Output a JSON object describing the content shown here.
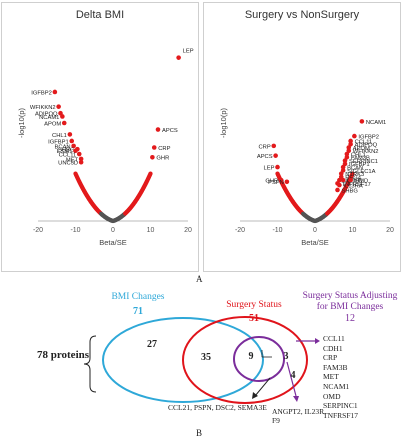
{
  "panel_label_top": "A",
  "panel_label_bottom": "B",
  "chart_data": [
    {
      "type": "scatter",
      "title": "Delta BMI",
      "xlabel": "Beta/SE",
      "ylabel": "-log10(p)",
      "xlim": [
        -20,
        20
      ],
      "ylim": [
        0,
        60
      ],
      "xticks": [
        -20,
        -10,
        0,
        10,
        20
      ],
      "colors": {
        "significant": "#e31a1c",
        "nonsignificant": "#555555"
      },
      "labeled_points": [
        {
          "label": "LEP",
          "x": 17.5,
          "y": 50
        },
        {
          "label": "IGFBP2",
          "x": -15.5,
          "y": 39.5
        },
        {
          "label": "WFIKKN2",
          "x": -14.5,
          "y": 35
        },
        {
          "label": "ADIPOQ",
          "x": -14,
          "y": 33
        },
        {
          "label": "NCAM1",
          "x": -13.5,
          "y": 32
        },
        {
          "label": "APOM",
          "x": -13,
          "y": 30
        },
        {
          "label": "APCS",
          "x": 12,
          "y": 28
        },
        {
          "label": "CHL1",
          "x": -11.5,
          "y": 26.5
        },
        {
          "label": "IGFBP1",
          "x": -11,
          "y": 24.5
        },
        {
          "label": "BCAN",
          "x": -10.5,
          "y": 23
        },
        {
          "label": "SHBG",
          "x": -9.5,
          "y": 22
        },
        {
          "label": "CRP",
          "x": 11,
          "y": 22.5
        },
        {
          "label": "ESM1",
          "x": -10,
          "y": 21.5
        },
        {
          "label": "CCL11",
          "x": -9,
          "y": 20.5
        },
        {
          "label": "GHR",
          "x": 10.5,
          "y": 19.5
        },
        {
          "label": "MET",
          "x": -8.5,
          "y": 19
        },
        {
          "label": "UNC5D",
          "x": -8.5,
          "y": 18
        }
      ]
    },
    {
      "type": "scatter",
      "title": "Surgery vs NonSurgery",
      "xlabel": "Beta/SE",
      "ylabel": "-log10(p)",
      "xlim": [
        -20,
        20
      ],
      "ylim": [
        0,
        60
      ],
      "xticks": [
        -20,
        -10,
        0,
        10,
        20
      ],
      "colors": {
        "significant": "#e31a1c",
        "nonsignificant": "#555555"
      },
      "labeled_points": [
        {
          "label": "NCAM1",
          "x": 12.5,
          "y": 30.5
        },
        {
          "label": "IGFBP2",
          "x": 10.5,
          "y": 26
        },
        {
          "label": "CCL11",
          "x": 9.5,
          "y": 24.5
        },
        {
          "label": "ADIPOQ",
          "x": 9.5,
          "y": 23.5
        },
        {
          "label": "APOM",
          "x": 9,
          "y": 22.5
        },
        {
          "label": "WFIKKN2",
          "x": 9,
          "y": 21.5
        },
        {
          "label": "CRP",
          "x": -11,
          "y": 23
        },
        {
          "label": "CHL1",
          "x": 8.5,
          "y": 20.5
        },
        {
          "label": "FAM3B",
          "x": 8.5,
          "y": 19.5
        },
        {
          "label": "APCS",
          "x": -10.5,
          "y": 20
        },
        {
          "label": "SERPINC1",
          "x": 8,
          "y": 18.5
        },
        {
          "label": "IGFBP1",
          "x": 8,
          "y": 17.5
        },
        {
          "label": "LEP",
          "x": -10,
          "y": 16.5
        },
        {
          "label": "BCAN",
          "x": 7.5,
          "y": 16.5
        },
        {
          "label": "SIGLEC1A",
          "x": 7.5,
          "y": 15.5
        },
        {
          "label": "NTRK3",
          "x": 7,
          "y": 14.5
        },
        {
          "label": "GHR",
          "x": -9,
          "y": 12.5
        },
        {
          "label": "PSPN",
          "x": -7.5,
          "y": 12
        },
        {
          "label": "REG4",
          "x": 7,
          "y": 13.5
        },
        {
          "label": "MET",
          "x": 6.5,
          "y": 12.5
        },
        {
          "label": "CDH1",
          "x": 7.5,
          "y": 12.5
        },
        {
          "label": "OMD",
          "x": 9.5,
          "y": 12.5
        },
        {
          "label": "TNFRSF17",
          "x": 6,
          "y": 11.5
        },
        {
          "label": "IL13RA",
          "x": 6.5,
          "y": 11
        },
        {
          "label": "SHBG",
          "x": 6,
          "y": 9.5
        }
      ]
    }
  ],
  "venn": {
    "total_label": "78 proteins",
    "sets": [
      {
        "name": "BMI Changes",
        "count": "71",
        "color": "#2ea8d8"
      },
      {
        "name": "Surgery Status",
        "count": "51",
        "color": "#e0141b"
      },
      {
        "name": "Surgery Status Adjusting for BMI Changes",
        "count": "12",
        "color": "#7b2d9b"
      }
    ],
    "regions": {
      "bmi_only": "27",
      "bmi_surgery": "35",
      "all_three": "9",
      "surgery_adjusted": "3",
      "surgery_only": "4"
    },
    "list_right": [
      "CCL11",
      "CDH1",
      "CRP",
      "FAM3B",
      "MET",
      "NCAM1",
      "OMD",
      "SERPINC1",
      "TNFRSF17"
    ],
    "list_bottom": "CCL21, PSPN, DSC2, SEMA3E",
    "list_purple": "ANGPT2, IL23R, F9"
  }
}
